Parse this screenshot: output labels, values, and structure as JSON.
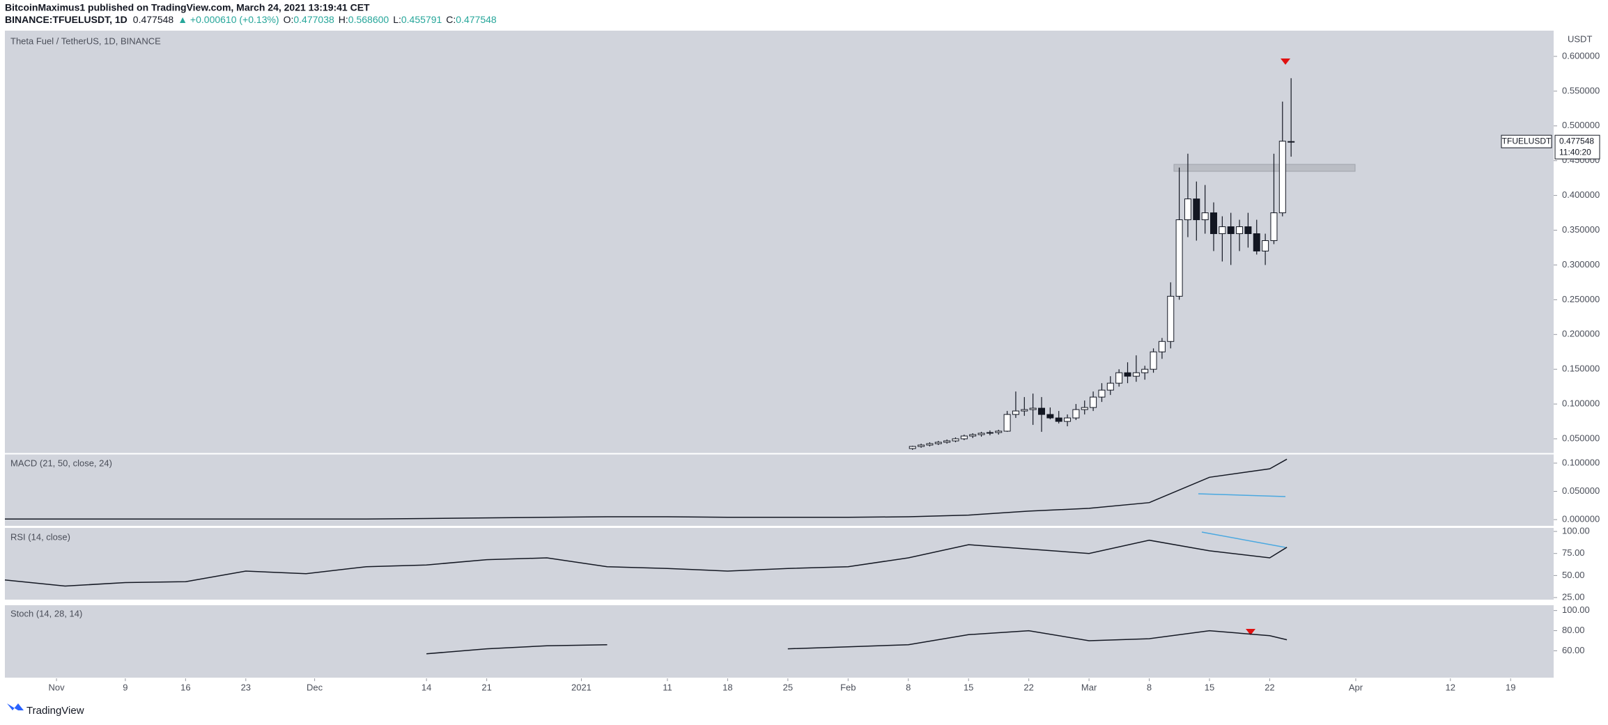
{
  "header": {
    "author_line": "BitcoinMaximus1 published on TradingView.com, March 24, 2021 13:19:41 CET",
    "symbol": "BINANCE:TFUELUSDT, 1D",
    "last": "0.477548",
    "change": "▲ +0.000610 (+0.13%)",
    "ohlc": [
      {
        "label": "O:",
        "value": "0.477038"
      },
      {
        "label": "H:",
        "value": "0.568600"
      },
      {
        "label": "L:",
        "value": "0.455791"
      },
      {
        "label": "C:",
        "value": "0.477548"
      }
    ],
    "brand": "TradingView"
  },
  "chart_data": [
    {
      "type": "candlestick",
      "title": "Theta Fuel / TetherUS, 1D, BINANCE",
      "axis_unit": "USDT",
      "price_tag": {
        "symbol": "TFUELUSDT",
        "value_label": "0.477548",
        "countdown": "11:40:20"
      },
      "x": [
        "2021-02-08",
        "2021-02-09",
        "2021-02-10",
        "2021-02-11",
        "2021-02-12",
        "2021-02-13",
        "2021-02-14",
        "2021-02-15",
        "2021-02-16",
        "2021-02-17",
        "2021-02-18",
        "2021-02-19",
        "2021-02-20",
        "2021-02-21",
        "2021-02-22",
        "2021-02-23",
        "2021-02-24",
        "2021-02-25",
        "2021-02-26",
        "2021-02-27",
        "2021-02-28",
        "2021-03-01",
        "2021-03-02",
        "2021-03-03",
        "2021-03-04",
        "2021-03-05",
        "2021-03-06",
        "2021-03-07",
        "2021-03-08",
        "2021-03-09",
        "2021-03-10",
        "2021-03-11",
        "2021-03-12",
        "2021-03-13",
        "2021-03-14",
        "2021-03-15",
        "2021-03-16",
        "2021-03-17",
        "2021-03-18",
        "2021-03-19",
        "2021-03-20",
        "2021-03-21",
        "2021-03-22",
        "2021-03-23",
        "2021-03-24"
      ],
      "open": [
        0.036,
        0.039,
        0.041,
        0.043,
        0.045,
        0.047,
        0.05,
        0.054,
        0.056,
        0.058,
        0.059,
        0.061,
        0.085,
        0.09,
        0.092,
        0.094,
        0.085,
        0.08,
        0.075,
        0.08,
        0.092,
        0.095,
        0.11,
        0.12,
        0.13,
        0.145,
        0.14,
        0.145,
        0.15,
        0.175,
        0.19,
        0.255,
        0.365,
        0.395,
        0.365,
        0.375,
        0.345,
        0.355,
        0.345,
        0.355,
        0.345,
        0.32,
        0.335,
        0.375,
        0.477038
      ],
      "high": [
        0.04,
        0.043,
        0.045,
        0.047,
        0.049,
        0.052,
        0.056,
        0.058,
        0.06,
        0.062,
        0.063,
        0.09,
        0.118,
        0.11,
        0.115,
        0.11,
        0.095,
        0.09,
        0.085,
        0.1,
        0.105,
        0.118,
        0.13,
        0.14,
        0.15,
        0.16,
        0.17,
        0.155,
        0.18,
        0.195,
        0.275,
        0.44,
        0.46,
        0.42,
        0.415,
        0.39,
        0.37,
        0.375,
        0.365,
        0.375,
        0.365,
        0.345,
        0.46,
        0.535,
        0.5686
      ],
      "low": [
        0.034,
        0.037,
        0.039,
        0.041,
        0.043,
        0.045,
        0.048,
        0.051,
        0.053,
        0.055,
        0.056,
        0.06,
        0.08,
        0.083,
        0.07,
        0.06,
        0.078,
        0.072,
        0.068,
        0.077,
        0.085,
        0.09,
        0.103,
        0.113,
        0.125,
        0.13,
        0.132,
        0.135,
        0.145,
        0.165,
        0.18,
        0.25,
        0.34,
        0.335,
        0.345,
        0.32,
        0.305,
        0.3,
        0.32,
        0.325,
        0.315,
        0.3,
        0.33,
        0.37,
        0.455791
      ],
      "close": [
        0.039,
        0.041,
        0.043,
        0.045,
        0.047,
        0.05,
        0.054,
        0.056,
        0.058,
        0.059,
        0.061,
        0.085,
        0.09,
        0.092,
        0.094,
        0.085,
        0.08,
        0.075,
        0.08,
        0.092,
        0.095,
        0.11,
        0.12,
        0.13,
        0.145,
        0.14,
        0.145,
        0.15,
        0.175,
        0.19,
        0.255,
        0.365,
        0.395,
        0.365,
        0.375,
        0.345,
        0.355,
        0.345,
        0.355,
        0.345,
        0.32,
        0.335,
        0.375,
        0.478,
        0.477548
      ],
      "xlim": [
        "2020-10-26",
        "2021-04-24"
      ],
      "xticks": [
        {
          "value": "2020-11-01",
          "label": "Nov"
        },
        {
          "value": "2020-11-09",
          "label": "9"
        },
        {
          "value": "2020-11-16",
          "label": "16"
        },
        {
          "value": "2020-11-23",
          "label": "23"
        },
        {
          "value": "2020-12-01",
          "label": "Dec"
        },
        {
          "value": "2020-12-14",
          "label": "14"
        },
        {
          "value": "2020-12-21",
          "label": "21"
        },
        {
          "value": "2021-01-01",
          "label": "2021"
        },
        {
          "value": "2021-01-11",
          "label": "11"
        },
        {
          "value": "2021-01-18",
          "label": "18"
        },
        {
          "value": "2021-01-25",
          "label": "25"
        },
        {
          "value": "2021-02-01",
          "label": "Feb"
        },
        {
          "value": "2021-02-08",
          "label": "8"
        },
        {
          "value": "2021-02-15",
          "label": "15"
        },
        {
          "value": "2021-02-22",
          "label": "22"
        },
        {
          "value": "2021-03-01",
          "label": "Mar"
        },
        {
          "value": "2021-03-08",
          "label": "8"
        },
        {
          "value": "2021-03-15",
          "label": "15"
        },
        {
          "value": "2021-03-22",
          "label": "22"
        },
        {
          "value": "2021-04-01",
          "label": "Apr"
        },
        {
          "value": "2021-04-12",
          "label": "12"
        },
        {
          "value": "2021-04-19",
          "label": "19"
        }
      ],
      "ylim": [
        0.029,
        0.635
      ],
      "yticks": [
        {
          "value": 0.05,
          "label": "0.050000"
        },
        {
          "value": 0.1,
          "label": "0.100000"
        },
        {
          "value": 0.15,
          "label": "0.150000"
        },
        {
          "value": 0.2,
          "label": "0.200000"
        },
        {
          "value": 0.25,
          "label": "0.250000"
        },
        {
          "value": 0.3,
          "label": "0.300000"
        },
        {
          "value": 0.35,
          "label": "0.350000"
        },
        {
          "value": 0.4,
          "label": "0.400000"
        },
        {
          "value": 0.45,
          "label": "0.450000"
        },
        {
          "value": 0.5,
          "label": "0.500000"
        },
        {
          "value": 0.55,
          "label": "0.550000"
        },
        {
          "value": 0.6,
          "label": "0.600000"
        }
      ],
      "color_up": "#ffffff",
      "color_down": "#131722"
    },
    {
      "type": "line",
      "title": "MACD (21, 50, close, 24)",
      "color": "#131722",
      "x": [
        "2020-10-26",
        "2020-11-02",
        "2020-11-09",
        "2020-11-16",
        "2020-11-23",
        "2020-11-30",
        "2020-12-07",
        "2020-12-14",
        "2020-12-21",
        "2020-12-28",
        "2021-01-04",
        "2021-01-11",
        "2021-01-18",
        "2021-01-25",
        "2021-02-01",
        "2021-02-08",
        "2021-02-15",
        "2021-02-22",
        "2021-03-01",
        "2021-03-08",
        "2021-03-15",
        "2021-03-22",
        "2021-03-24"
      ],
      "values": [
        0.001,
        0.001,
        0.001,
        0.001,
        0.001,
        0.001,
        0.001,
        0.002,
        0.003,
        0.004,
        0.005,
        0.005,
        0.004,
        0.004,
        0.004,
        0.005,
        0.008,
        0.015,
        0.02,
        0.03,
        0.075,
        0.09,
        0.107
      ],
      "ylim": [
        -0.011,
        0.116
      ],
      "yticks": [
        {
          "value": 0,
          "label": "0.000000"
        },
        {
          "value": 0.05,
          "label": "0.050000"
        },
        {
          "value": 0.1,
          "label": "0.100000"
        }
      ]
    },
    {
      "type": "line",
      "title": "RSI (14, close)",
      "color": "#131722",
      "x": [
        "2020-10-26",
        "2020-11-02",
        "2020-11-09",
        "2020-11-16",
        "2020-11-23",
        "2020-11-30",
        "2020-12-07",
        "2020-12-14",
        "2020-12-21",
        "2020-12-28",
        "2021-01-04",
        "2021-01-11",
        "2021-01-18",
        "2021-01-25",
        "2021-02-01",
        "2021-02-08",
        "2021-02-15",
        "2021-02-22",
        "2021-03-01",
        "2021-03-08",
        "2021-03-15",
        "2021-03-22",
        "2021-03-24"
      ],
      "values": [
        45,
        38,
        42,
        43,
        55,
        52,
        60,
        62,
        68,
        70,
        60,
        58,
        55,
        58,
        60,
        70,
        85,
        80,
        75,
        90,
        78,
        70,
        82
      ],
      "ylim": [
        25,
        104
      ],
      "yticks": [
        {
          "value": 25,
          "label": "25.00"
        },
        {
          "value": 50,
          "label": "50.00"
        },
        {
          "value": 75,
          "label": "75.00"
        },
        {
          "value": 100,
          "label": "100.00"
        }
      ]
    },
    {
      "type": "line",
      "title": "Stoch (14, 28, 14)",
      "color": "#131722",
      "x": [
        "2020-10-26",
        "2020-11-02",
        "2020-11-09",
        "2020-11-16",
        "2020-11-23",
        "2020-11-30",
        "2020-12-07",
        "2020-12-14",
        "2020-12-21",
        "2020-12-28",
        "2021-01-04",
        "2021-01-11",
        "2021-01-18",
        "2021-01-25",
        "2021-02-01",
        "2021-02-08",
        "2021-02-15",
        "2021-02-22",
        "2021-03-01",
        "2021-03-08",
        "2021-03-15",
        "2021-03-22",
        "2021-03-24"
      ],
      "values": [
        null,
        null,
        null,
        null,
        null,
        null,
        null,
        57,
        62,
        65,
        66,
        null,
        null,
        62,
        64,
        66,
        76,
        80,
        70,
        72,
        80,
        75,
        71
      ],
      "ylim": [
        34,
        106
      ],
      "yticks": [
        {
          "value": 60,
          "label": "60.00"
        },
        {
          "value": 80,
          "label": "80.00"
        },
        {
          "value": 100,
          "label": "100.00"
        }
      ]
    }
  ]
}
